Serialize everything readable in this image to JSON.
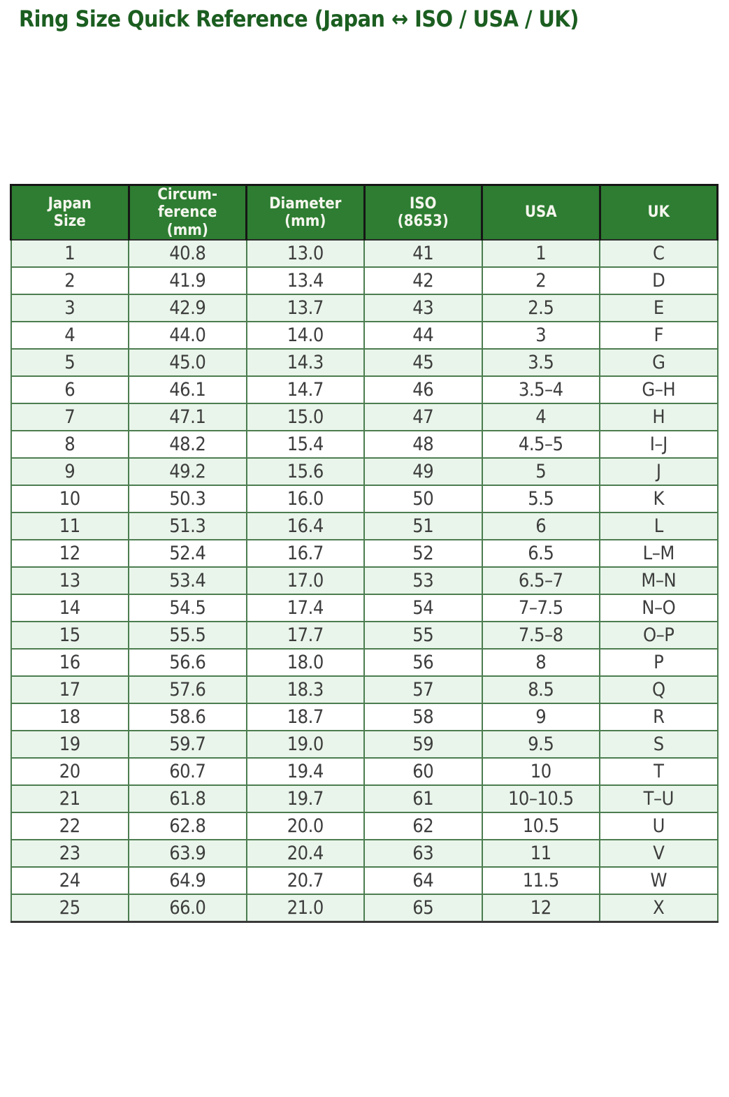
{
  "title": "Ring Size Quick Reference (Japan ↔ ISO / USA / UK)",
  "colors": {
    "title_text": "#1b5e20",
    "header_bg": "#2e7d32",
    "header_text": "#f5f6ee",
    "row_odd_bg": "#e9f5ea",
    "row_even_bg": "#ffffff",
    "body_border": "#4c7d50",
    "body_text": "#3d3d3d"
  },
  "chart_data": {
    "type": "table",
    "title": "Ring Size Quick Reference (Japan ↔ ISO / USA / UK)",
    "columns": [
      "Japan Size",
      "Circumference (mm)",
      "Diameter (mm)",
      "ISO (8653)",
      "USA",
      "UK"
    ],
    "column_display": [
      "Japan\nSize",
      "Circum-\nference\n(mm)",
      "Diameter\n(mm)",
      "ISO\n(8653)",
      "USA",
      "UK"
    ],
    "rows": [
      [
        "1",
        "40.8",
        "13.0",
        "41",
        "1",
        "C"
      ],
      [
        "2",
        "41.9",
        "13.4",
        "42",
        "2",
        "D"
      ],
      [
        "3",
        "42.9",
        "13.7",
        "43",
        "2.5",
        "E"
      ],
      [
        "4",
        "44.0",
        "14.0",
        "44",
        "3",
        "F"
      ],
      [
        "5",
        "45.0",
        "14.3",
        "45",
        "3.5",
        "G"
      ],
      [
        "6",
        "46.1",
        "14.7",
        "46",
        "3.5–4",
        "G–H"
      ],
      [
        "7",
        "47.1",
        "15.0",
        "47",
        "4",
        "H"
      ],
      [
        "8",
        "48.2",
        "15.4",
        "48",
        "4.5–5",
        "I–J"
      ],
      [
        "9",
        "49.2",
        "15.6",
        "49",
        "5",
        "J"
      ],
      [
        "10",
        "50.3",
        "16.0",
        "50",
        "5.5",
        "K"
      ],
      [
        "11",
        "51.3",
        "16.4",
        "51",
        "6",
        "L"
      ],
      [
        "12",
        "52.4",
        "16.7",
        "52",
        "6.5",
        "L–M"
      ],
      [
        "13",
        "53.4",
        "17.0",
        "53",
        "6.5–7",
        "M–N"
      ],
      [
        "14",
        "54.5",
        "17.4",
        "54",
        "7–7.5",
        "N–O"
      ],
      [
        "15",
        "55.5",
        "17.7",
        "55",
        "7.5–8",
        "O–P"
      ],
      [
        "16",
        "56.6",
        "18.0",
        "56",
        "8",
        "P"
      ],
      [
        "17",
        "57.6",
        "18.3",
        "57",
        "8.5",
        "Q"
      ],
      [
        "18",
        "58.6",
        "18.7",
        "58",
        "9",
        "R"
      ],
      [
        "19",
        "59.7",
        "19.0",
        "59",
        "9.5",
        "S"
      ],
      [
        "20",
        "60.7",
        "19.4",
        "60",
        "10",
        "T"
      ],
      [
        "21",
        "61.8",
        "19.7",
        "61",
        "10–10.5",
        "T–U"
      ],
      [
        "22",
        "62.8",
        "20.0",
        "62",
        "10.5",
        "U"
      ],
      [
        "23",
        "63.9",
        "20.4",
        "63",
        "11",
        "V"
      ],
      [
        "24",
        "64.9",
        "20.7",
        "64",
        "11.5",
        "W"
      ],
      [
        "25",
        "66.0",
        "21.0",
        "65",
        "12",
        "X"
      ]
    ]
  }
}
